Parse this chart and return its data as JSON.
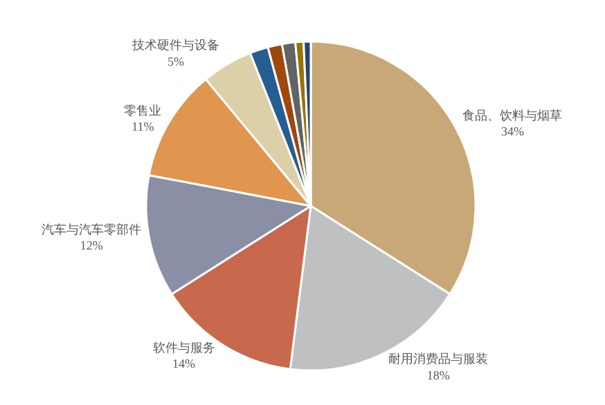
{
  "chart_data": {
    "type": "pie",
    "categories": [
      "食品、饮料与烟草",
      "耐用消费品与服装",
      "软件与服务",
      "汽车与汽车零部件",
      "零售业",
      "技术硬件与设备",
      null,
      null,
      null,
      null,
      null
    ],
    "values": [
      34,
      18,
      14,
      12,
      11,
      5,
      1.8,
      1.4,
      1.3,
      0.8,
      0.7
    ],
    "value_labels": [
      "34%",
      "18%",
      "14%",
      "12%",
      "11%",
      "5%",
      null,
      null,
      null,
      null,
      null
    ],
    "colors": [
      "#c9a878",
      "#bfc0c2",
      "#c8684c",
      "#8a8fa6",
      "#e0964f",
      "#ddd0a8",
      "#255e91",
      "#9e480e",
      "#636363",
      "#997300",
      "#264478"
    ],
    "legend": false
  }
}
